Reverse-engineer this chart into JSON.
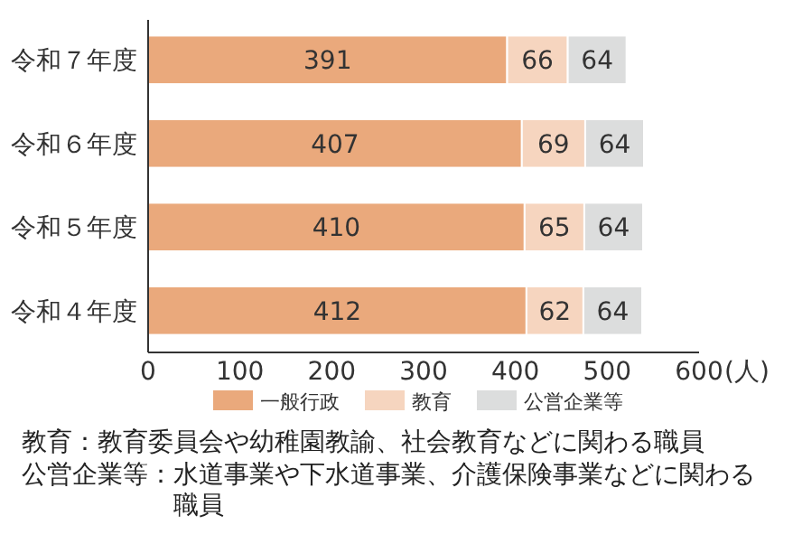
{
  "chart_data": {
    "type": "bar",
    "orientation": "horizontal",
    "stacked": true,
    "data_labels": true,
    "legend": "bottom",
    "grid": false,
    "categories": [
      "令和７年度",
      "令和６年度",
      "令和５年度",
      "令和４年度"
    ],
    "series": [
      {
        "name": "一般行政",
        "color": "#eaa97c",
        "values": [
          391,
          407,
          410,
          412
        ]
      },
      {
        "name": "教育",
        "color": "#f6d5bf",
        "values": [
          66,
          69,
          65,
          62
        ]
      },
      {
        "name": "公営企業等",
        "color": "#dcdddd",
        "values": [
          64,
          64,
          64,
          64
        ]
      }
    ],
    "xlim": [
      0,
      600
    ],
    "xticks": [
      0,
      100,
      200,
      300,
      400,
      500,
      600
    ],
    "xlabel": "(人)",
    "annotations": [
      "教育：教育委員会や幼稚園教諭、社会教育などに関わる職員",
      "公営企業等：水道事業や下水道事業、介護保険事業などに関わる職員"
    ]
  }
}
